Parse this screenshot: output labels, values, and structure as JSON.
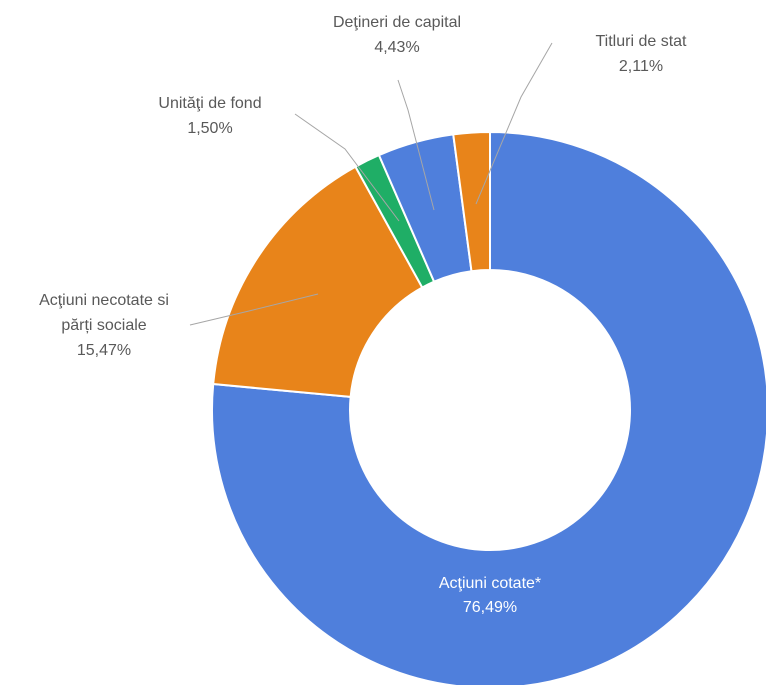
{
  "chart_data": {
    "type": "pie",
    "donut": true,
    "title": "",
    "slices": [
      {
        "label": "Acţiuni cotate*",
        "display_value": "76,49%",
        "value": 76.49,
        "color": "#4f7fdc"
      },
      {
        "label": "Acţiuni necotate si părți sociale",
        "display_value": "15,47%",
        "value": 15.47,
        "color": "#e8841a"
      },
      {
        "label": "Unităţi de fond",
        "display_value": "1,50%",
        "value": 1.5,
        "color": "#1fae66"
      },
      {
        "label": "Deţineri de capital",
        "display_value": "4,43%",
        "value": 4.43,
        "color": "#4f7fdc"
      },
      {
        "label": "Titluri de stat",
        "display_value": "2,11%",
        "value": 2.11,
        "color": "#e8841a"
      }
    ],
    "start_angle_deg": 0,
    "direction": "clockwise",
    "labels": {
      "s0": {
        "line1": "Acţiuni cotate*",
        "line2": "76,49%"
      },
      "s1": {
        "line1": "Acţiuni necotate si",
        "line2": "părți sociale",
        "line3": "15,47%"
      },
      "s2": {
        "line1": "Unităţi de fond",
        "line2": "1,50%"
      },
      "s3": {
        "line1": "Deţineri de capital",
        "line2": "4,43%"
      },
      "s4": {
        "line1": "Titluri de stat",
        "line2": "2,11%"
      }
    }
  }
}
